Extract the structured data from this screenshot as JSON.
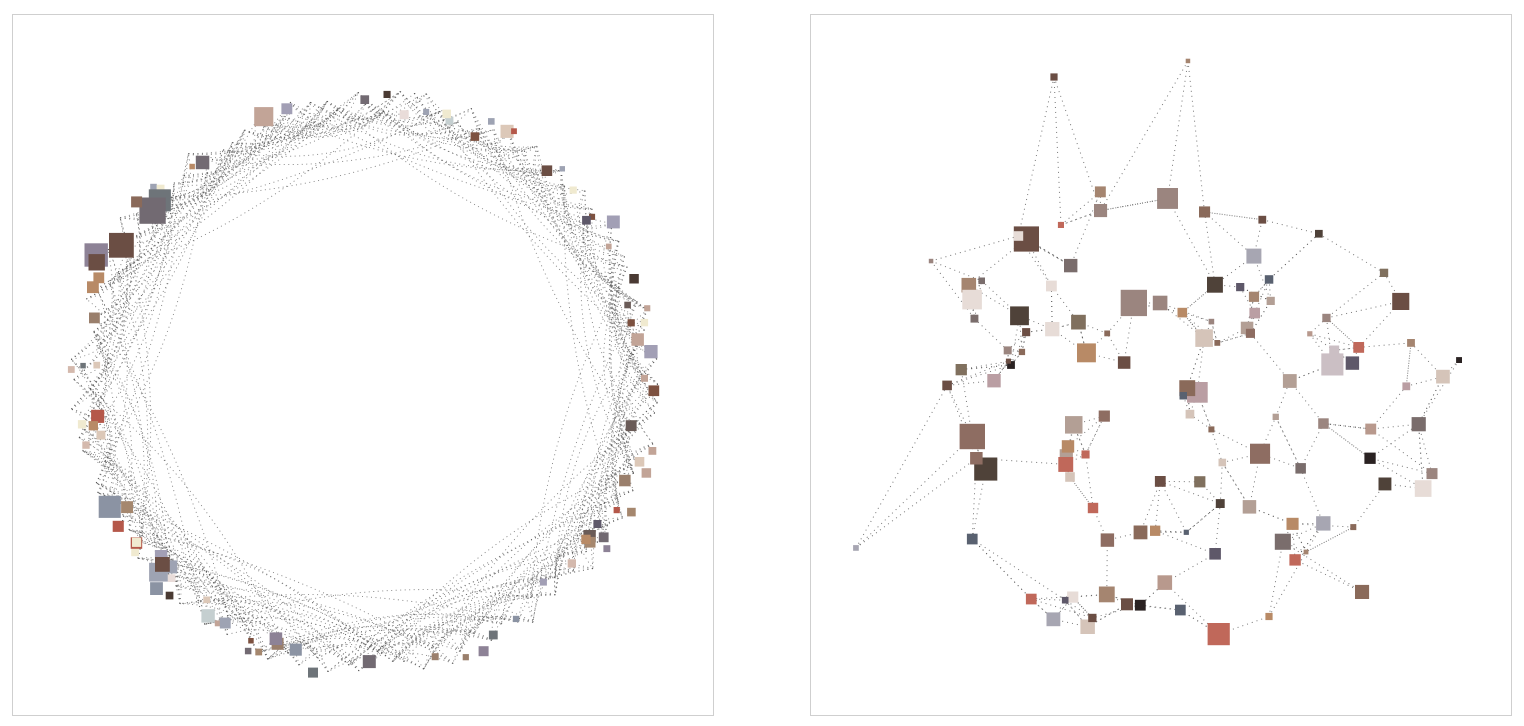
{
  "panels": [
    {
      "id": "ring-network",
      "layout": "ring",
      "node_colors": [
        "#6b4e44",
        "#8a6a5a",
        "#9ea3b3",
        "#8d8296",
        "#c5cfd0",
        "#6e7479",
        "#dcc8b8",
        "#a5876e",
        "#b5584a",
        "#7d5140",
        "#e9dcd9",
        "#9a7f6c",
        "#a29fb5",
        "#5e5869",
        "#f0ead0",
        "#b88a66",
        "#726a72",
        "#4a3a33",
        "#c2a497",
        "#8b93a3",
        "#d4b9ad",
        "#6a5b57"
      ]
    },
    {
      "id": "mesh-network",
      "layout": "mesh",
      "node_colors": [
        "#6b4e44",
        "#8a6a5a",
        "#b8998d",
        "#5e5869",
        "#2a2222",
        "#c0685a",
        "#b39f95",
        "#a58570",
        "#cbbfc4",
        "#80705e",
        "#4f4239",
        "#9b857f",
        "#ba9ea3",
        "#7a6d6c",
        "#d5c4b9",
        "#8e6d62",
        "#596170",
        "#b88a66",
        "#e7dcd7",
        "#a7a6b2"
      ]
    }
  ]
}
